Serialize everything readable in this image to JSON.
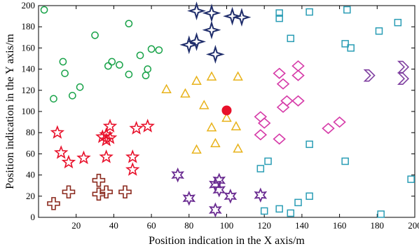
{
  "chart_data": {
    "type": "scatter",
    "title": "",
    "xlabel": "Position indication in the X axis/m",
    "ylabel": "Position indication in the Y axis/m",
    "xlim": [
      0,
      200
    ],
    "ylim": [
      0,
      200
    ],
    "xticks": [
      20,
      40,
      60,
      80,
      100,
      120,
      140,
      160,
      180,
      200
    ],
    "yticks": [
      0,
      20,
      40,
      60,
      80,
      100,
      120,
      140,
      160,
      180,
      200
    ],
    "grid": false,
    "legend": "none",
    "series": [
      {
        "marker": "circle",
        "color": "#1aa34a",
        "points": [
          [
            3,
            196
          ],
          [
            8,
            112
          ],
          [
            13,
            147
          ],
          [
            14,
            136
          ],
          [
            18,
            115
          ],
          [
            22,
            123
          ],
          [
            30,
            172
          ],
          [
            37,
            143
          ],
          [
            39,
            147
          ],
          [
            43,
            144
          ],
          [
            48,
            183
          ],
          [
            48,
            135
          ],
          [
            54,
            153
          ],
          [
            57,
            134
          ],
          [
            58,
            140
          ],
          [
            60,
            159
          ],
          [
            64,
            158
          ]
        ]
      },
      {
        "marker": "star4",
        "color": "#1f2d6b",
        "points": [
          [
            84,
            195
          ],
          [
            92,
            193
          ],
          [
            92,
            177
          ],
          [
            80,
            163
          ],
          [
            84,
            166
          ],
          [
            94,
            154
          ],
          [
            103,
            190
          ],
          [
            108,
            189
          ]
        ]
      },
      {
        "marker": "triangle",
        "color": "#e8b21a",
        "points": [
          [
            68,
            121
          ],
          [
            78,
            117
          ],
          [
            84,
            129
          ],
          [
            92,
            133
          ],
          [
            106,
            133
          ],
          [
            88,
            106
          ],
          [
            92,
            85
          ],
          [
            100,
            94
          ],
          [
            105,
            86
          ],
          [
            94,
            70
          ],
          [
            84,
            64
          ],
          [
            106,
            65
          ]
        ]
      },
      {
        "marker": "circle-filled",
        "color": "#e8102a",
        "points": [
          [
            100,
            101
          ]
        ]
      },
      {
        "marker": "diamond-open",
        "color": "#d63aa8",
        "points": [
          [
            128,
            136
          ],
          [
            130,
            126
          ],
          [
            138,
            143
          ],
          [
            138,
            134
          ],
          [
            132,
            110
          ],
          [
            130,
            104
          ],
          [
            138,
            110
          ],
          [
            118,
            95
          ],
          [
            120,
            89
          ],
          [
            118,
            78
          ],
          [
            128,
            74
          ],
          [
            154,
            84
          ],
          [
            160,
            90
          ]
        ]
      },
      {
        "marker": "chevron",
        "color": "#7f3fa0",
        "points": [
          [
            176,
            134
          ],
          [
            194,
            142
          ],
          [
            194,
            131
          ]
        ]
      },
      {
        "marker": "square-open",
        "color": "#2a9db5",
        "points": [
          [
            128,
            193
          ],
          [
            128,
            188
          ],
          [
            134,
            169
          ],
          [
            144,
            194
          ],
          [
            164,
            196
          ],
          [
            181,
            176
          ],
          [
            191,
            184
          ],
          [
            163,
            164
          ],
          [
            166,
            160
          ],
          [
            144,
            69
          ],
          [
            122,
            53
          ],
          [
            118,
            46
          ],
          [
            163,
            53
          ],
          [
            198,
            36
          ],
          [
            144,
            20
          ],
          [
            138,
            14
          ],
          [
            120,
            6
          ],
          [
            128,
            8
          ],
          [
            134,
            4
          ],
          [
            182,
            3
          ]
        ]
      },
      {
        "marker": "star5",
        "color": "#e8102a",
        "points": [
          [
            10,
            80
          ],
          [
            12,
            61
          ],
          [
            16,
            52
          ],
          [
            24,
            56
          ],
          [
            34,
            76
          ],
          [
            36,
            78
          ],
          [
            36,
            73
          ],
          [
            36,
            57
          ],
          [
            38,
            86
          ],
          [
            38,
            75
          ],
          [
            50,
            57
          ],
          [
            50,
            45
          ],
          [
            52,
            84
          ],
          [
            58,
            86
          ]
        ]
      },
      {
        "marker": "cross",
        "color": "#8b2a1e",
        "points": [
          [
            8,
            13
          ],
          [
            16,
            24
          ],
          [
            32,
            35
          ],
          [
            32,
            22
          ],
          [
            36,
            24
          ],
          [
            46,
            24
          ]
        ]
      },
      {
        "marker": "star6",
        "color": "#6a2c91",
        "points": [
          [
            74,
            40
          ],
          [
            80,
            18
          ],
          [
            94,
            31
          ],
          [
            96,
            35
          ],
          [
            96,
            26
          ],
          [
            102,
            20
          ],
          [
            94,
            7
          ],
          [
            118,
            21
          ]
        ]
      }
    ]
  }
}
